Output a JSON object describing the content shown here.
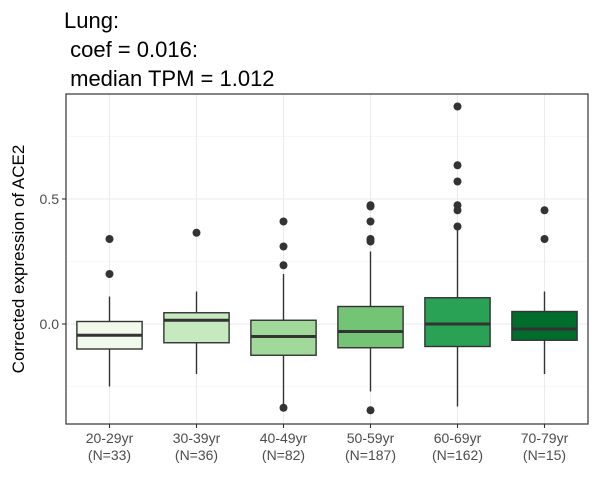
{
  "chart_data": {
    "type": "box",
    "title_lines": [
      "Lung:",
      " coef = 0.016:",
      " median TPM = 1.012"
    ],
    "xlabel": "",
    "ylabel": "Corrected expression of ACE2",
    "ylim": [
      -0.4,
      0.92
    ],
    "y_ticks": [
      0.0,
      0.5
    ],
    "y_tick_labels": [
      "0.0",
      "0.5"
    ],
    "grid": true,
    "categories": [
      "20-29yr\n(N=33)",
      "30-39yr\n(N=36)",
      "40-49yr\n(N=82)",
      "50-59yr\n(N=187)",
      "60-69yr\n(N=162)",
      "70-79yr\n(N=15)"
    ],
    "boxes": [
      {
        "q1": -0.1,
        "median": -0.045,
        "q3": 0.01,
        "whisker_low": -0.25,
        "whisker_high": 0.11,
        "outliers": [
          0.2,
          0.34
        ],
        "fill": "#f0f9ec"
      },
      {
        "q1": -0.075,
        "median": 0.015,
        "q3": 0.045,
        "whisker_low": -0.2,
        "whisker_high": 0.13,
        "outliers": [
          0.365
        ],
        "fill": "#c7e9c0"
      },
      {
        "q1": -0.125,
        "median": -0.05,
        "q3": 0.015,
        "whisker_low": -0.33,
        "whisker_high": 0.2,
        "outliers": [
          -0.335,
          0.235,
          0.31,
          0.41
        ],
        "fill": "#a1d99b"
      },
      {
        "q1": -0.095,
        "median": -0.03,
        "q3": 0.07,
        "whisker_low": -0.27,
        "whisker_high": 0.29,
        "outliers": [
          -0.345,
          0.33,
          0.34,
          0.41,
          0.47,
          0.475
        ],
        "fill": "#74c476"
      },
      {
        "q1": -0.09,
        "median": 0.0,
        "q3": 0.105,
        "whisker_low": -0.33,
        "whisker_high": 0.38,
        "outliers": [
          0.39,
          0.455,
          0.475,
          0.57,
          0.635,
          0.87
        ],
        "fill": "#2aa255"
      },
      {
        "q1": -0.065,
        "median": -0.02,
        "q3": 0.05,
        "whisker_low": -0.2,
        "whisker_high": 0.13,
        "outliers": [
          0.34,
          0.455
        ],
        "fill": "#006d2c"
      }
    ]
  }
}
